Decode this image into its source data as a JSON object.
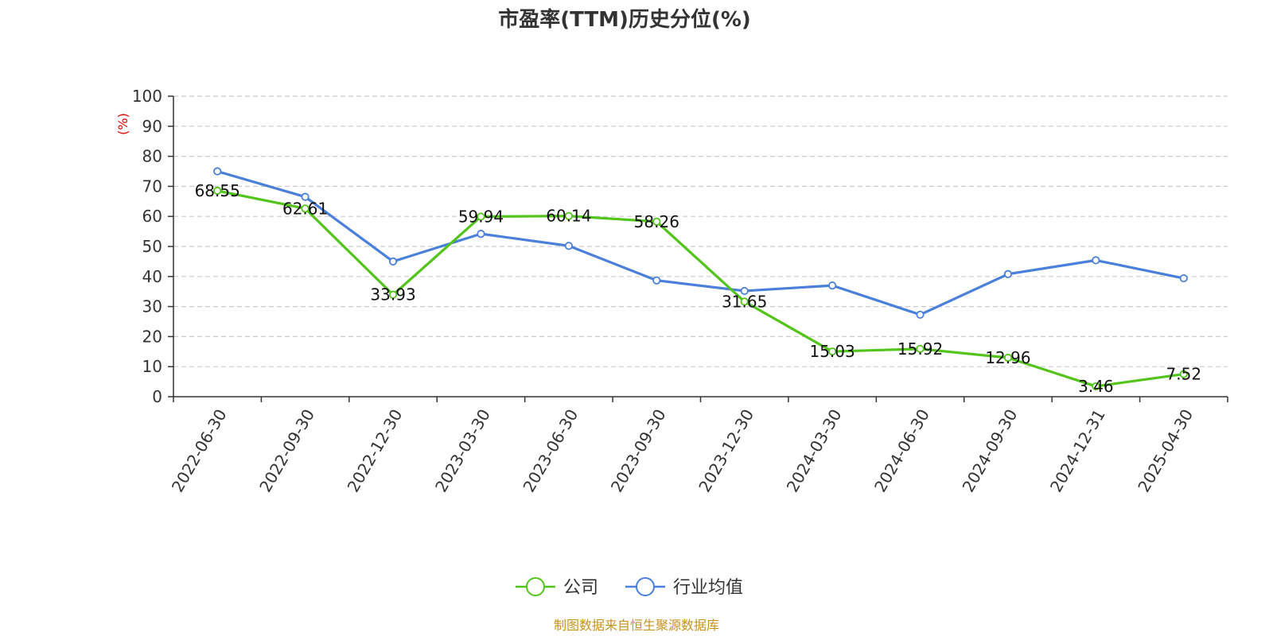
{
  "chart_data": {
    "type": "line",
    "title": "市盈率(TTM)历史分位(%)",
    "ylabel": "(%)",
    "xlabel": "",
    "ylim": [
      0,
      100
    ],
    "yticks": [
      0,
      10,
      20,
      30,
      40,
      50,
      60,
      70,
      80,
      90,
      100
    ],
    "grid": true,
    "legend_position": "bottom-center",
    "categories": [
      "2022-06-30",
      "2022-09-30",
      "2022-12-30",
      "2023-03-30",
      "2023-06-30",
      "2023-09-30",
      "2023-12-30",
      "2024-03-30",
      "2024-06-30",
      "2024-09-30",
      "2024-12-31",
      "2025-04-30"
    ],
    "series": [
      {
        "name": "公司",
        "color": "#52c41a",
        "show_labels": true,
        "values": [
          68.55,
          62.61,
          33.93,
          59.94,
          60.14,
          58.26,
          31.65,
          15.03,
          15.92,
          12.96,
          3.46,
          7.52
        ]
      },
      {
        "name": "行业均值",
        "color": "#4a7fdb",
        "show_labels": false,
        "values": [
          75.0,
          66.5,
          45.0,
          54.2,
          50.2,
          38.7,
          35.2,
          37.0,
          27.3,
          40.8,
          45.4,
          39.4
        ]
      }
    ]
  },
  "source_note": "制图数据来自恒生聚源数据库"
}
